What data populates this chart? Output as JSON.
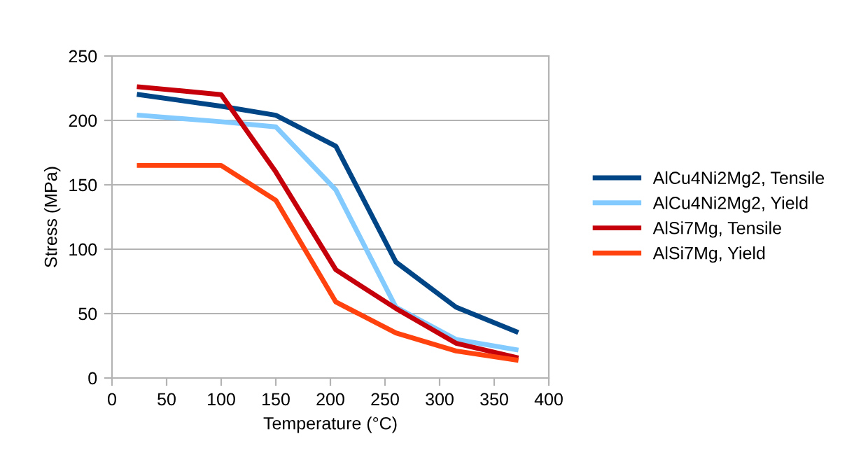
{
  "chart_data": {
    "type": "line",
    "xlabel": "Temperature (°C)",
    "ylabel": "Stress (MPa)",
    "x": [
      25,
      100,
      150,
      205,
      260,
      315,
      370
    ],
    "series": [
      {
        "name": "AlCu4Ni2Mg2, Tensile",
        "color": "#004586",
        "values": [
          220,
          211,
          204,
          180,
          90,
          55,
          36
        ]
      },
      {
        "name": "AlCu4Ni2Mg2, Yield",
        "color": "#83caff",
        "values": [
          204,
          199,
          195,
          146,
          55,
          30,
          22
        ]
      },
      {
        "name": "AlSi7Mg, Tensile",
        "color": "#c5000b",
        "values": [
          226,
          220,
          160,
          84,
          54,
          27,
          16
        ]
      },
      {
        "name": "AlSi7Mg, Yield",
        "color": "#ff420e",
        "values": [
          165,
          165,
          138,
          59,
          35,
          21,
          14
        ]
      }
    ],
    "xlim": [
      0,
      400
    ],
    "xticks": [
      0,
      50,
      100,
      150,
      200,
      250,
      300,
      350,
      400
    ],
    "ylim": [
      0,
      250
    ],
    "yticks": [
      0,
      50,
      100,
      150,
      200,
      250
    ],
    "grid": "y",
    "legend": "right",
    "marker": "none",
    "line_style": "solid"
  }
}
